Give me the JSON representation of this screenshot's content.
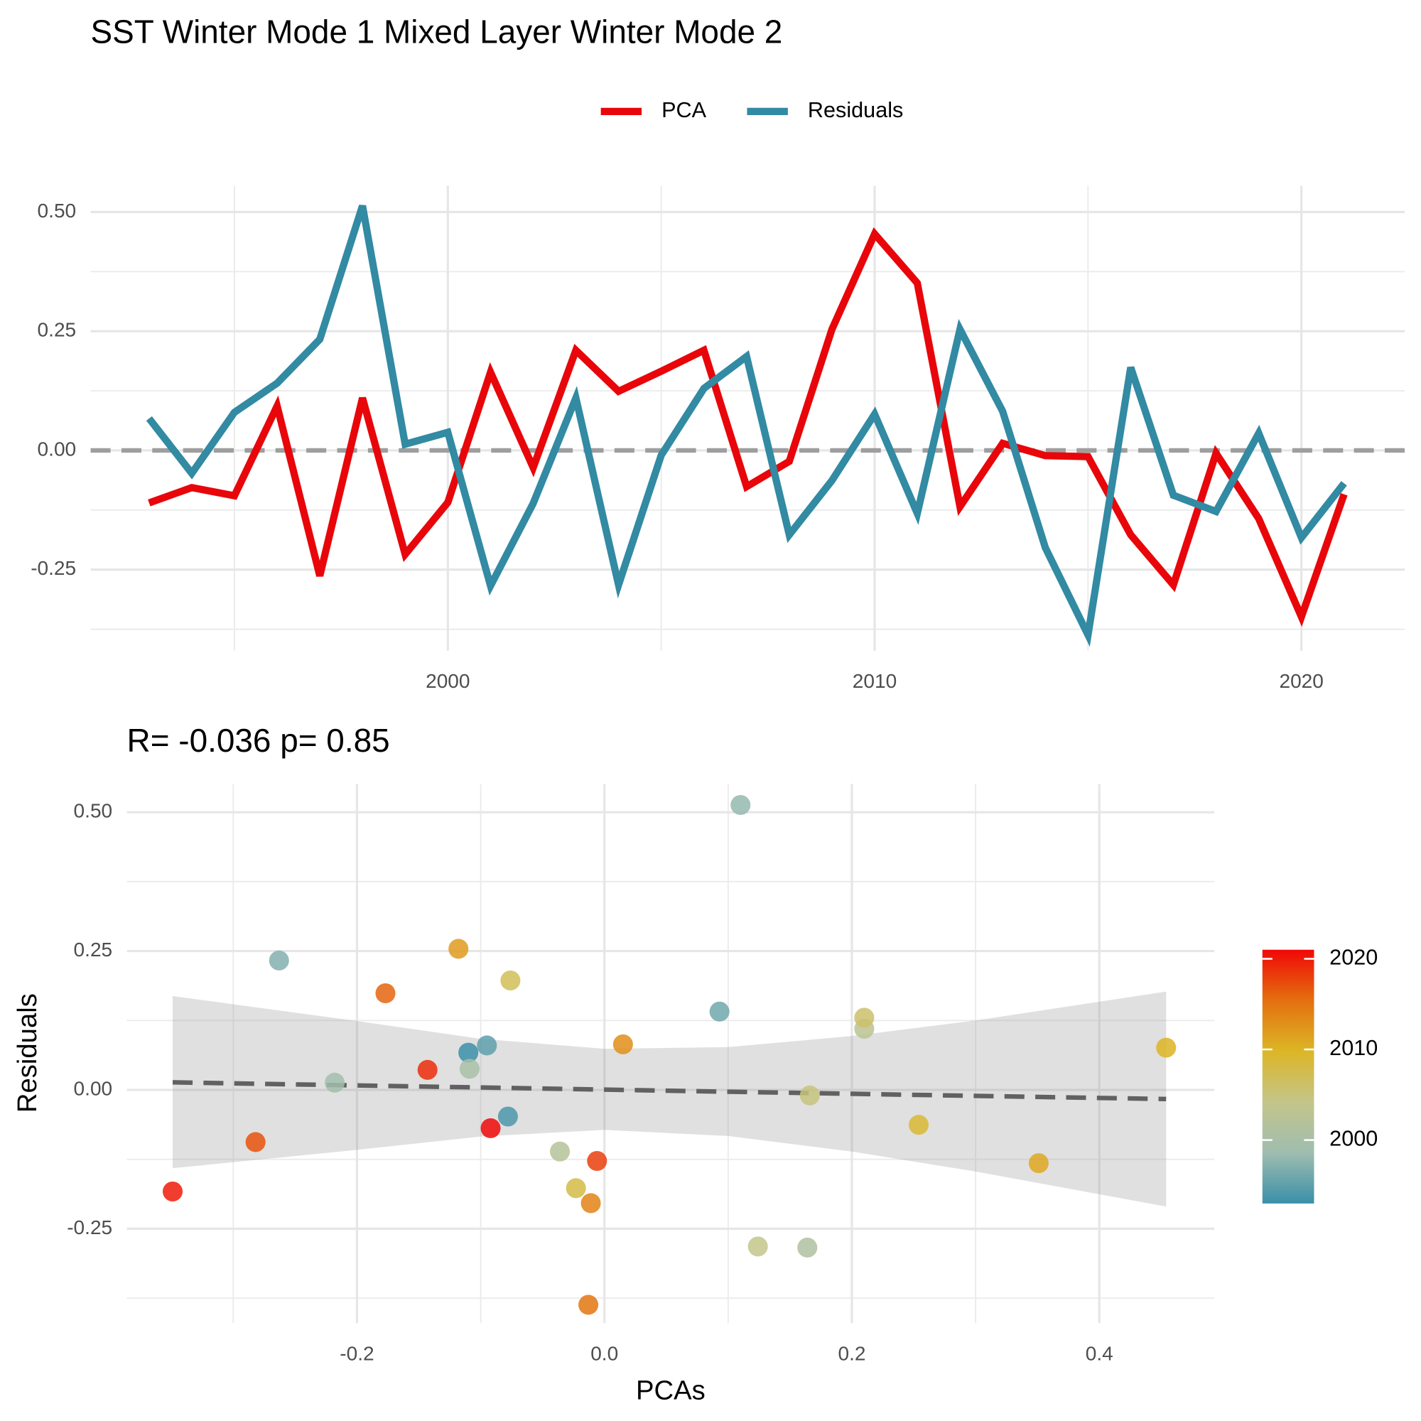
{
  "chart_data": [
    {
      "type": "line",
      "title": "SST Winter Mode 1 Mixed Layer Winter Mode 2",
      "x": [
        1993,
        1994,
        1995,
        1996,
        1997,
        1998,
        1999,
        2000,
        2001,
        2002,
        2003,
        2004,
        2005,
        2006,
        2007,
        2008,
        2009,
        2010,
        2011,
        2012,
        2013,
        2014,
        2015,
        2016,
        2017,
        2018,
        2019,
        2020,
        2021
      ],
      "series": [
        {
          "name": "PCA",
          "color": "#e8060a",
          "values": [
            -0.11,
            -0.078,
            -0.095,
            0.093,
            -0.263,
            0.11,
            -0.218,
            -0.109,
            0.164,
            -0.036,
            0.21,
            0.124,
            0.166,
            0.21,
            -0.076,
            -0.023,
            0.254,
            0.454,
            0.351,
            -0.118,
            0.015,
            -0.011,
            -0.013,
            -0.177,
            -0.282,
            -0.006,
            -0.143,
            -0.349,
            -0.092
          ]
        },
        {
          "name": "Residuals",
          "color": "#328aa3",
          "values": [
            0.067,
            -0.048,
            0.08,
            0.141,
            0.233,
            0.513,
            0.013,
            0.038,
            -0.284,
            -0.111,
            0.11,
            -0.282,
            -0.01,
            0.13,
            0.197,
            -0.177,
            -0.063,
            0.076,
            -0.132,
            0.254,
            0.082,
            -0.204,
            -0.387,
            0.174,
            -0.094,
            -0.128,
            0.036,
            -0.183,
            -0.069
          ]
        }
      ],
      "xlim": [
        1991.63,
        2022.42
      ],
      "xticks": [
        2000,
        2010,
        2020
      ],
      "xminor": [
        1995,
        2005,
        2015
      ],
      "ylim": [
        -0.42,
        0.555
      ],
      "yticks": [
        {
          "value": -0.25,
          "label": "-0.25"
        },
        {
          "value": 0,
          "label": "0.00"
        },
        0.25,
        {
          "value": 0.5,
          "label": "0.50"
        }
      ],
      "yminor": [
        -0.375,
        -0.125,
        0.125,
        0.375
      ],
      "hline": 0,
      "grid": true,
      "legend": "top"
    },
    {
      "type": "scatter",
      "title": "R= -0.036  p= 0.85",
      "xlabel": "PCAs",
      "ylabel": "Residuals",
      "x": [
        -0.11,
        -0.078,
        -0.095,
        0.093,
        -0.263,
        0.11,
        -0.218,
        -0.109,
        0.164,
        -0.036,
        0.21,
        0.124,
        0.166,
        0.21,
        -0.076,
        -0.023,
        0.254,
        0.454,
        0.351,
        -0.118,
        0.015,
        -0.011,
        -0.013,
        -0.177,
        -0.282,
        -0.006,
        -0.143,
        -0.349,
        -0.092
      ],
      "y": [
        0.067,
        -0.048,
        0.08,
        0.141,
        0.233,
        0.513,
        0.013,
        0.038,
        -0.284,
        -0.111,
        0.11,
        -0.282,
        -0.01,
        0.13,
        0.197,
        -0.177,
        -0.063,
        0.076,
        -0.132,
        0.254,
        0.082,
        -0.204,
        -0.387,
        0.174,
        -0.094,
        -0.128,
        0.036,
        -0.183,
        -0.069
      ],
      "years": [
        1993,
        1994,
        1995,
        1996,
        1997,
        1998,
        1999,
        2000,
        2001,
        2002,
        2003,
        2004,
        2005,
        2006,
        2007,
        2008,
        2009,
        2010,
        2011,
        2012,
        2013,
        2014,
        2015,
        2016,
        2017,
        2018,
        2019,
        2020,
        2021
      ],
      "fit": {
        "x": [
          -0.349,
          -0.2,
          -0.1,
          0,
          0.1,
          0.2,
          0.3,
          0.454
        ],
        "y": [
          0.0136,
          0.008,
          0.0043,
          0.0005,
          -0.0033,
          -0.007,
          -0.0108,
          -0.0165
        ],
        "lower": [
          -0.141,
          -0.108,
          -0.084,
          -0.072,
          -0.083,
          -0.111,
          -0.147,
          -0.21
        ],
        "upper": [
          0.169,
          0.124,
          0.092,
          0.074,
          0.077,
          0.097,
          0.125,
          0.177
        ]
      },
      "xlim": [
        -0.386,
        0.493
      ],
      "xticks": [
        -0.2,
        {
          "value": 0,
          "label": "0.0"
        },
        0.2,
        0.4
      ],
      "xminor": [
        -0.3,
        -0.1,
        0.1,
        0.3
      ],
      "ylim": [
        -0.42,
        0.551
      ],
      "yticks": [
        {
          "value": -0.25,
          "label": "-0.25"
        },
        {
          "value": 0,
          "label": "0.00"
        },
        0.25,
        {
          "value": 0.5,
          "label": "0.50"
        }
      ],
      "yminor": [
        -0.375,
        -0.125,
        0.125,
        0.375
      ],
      "grid": true,
      "colorbar": {
        "lim": [
          1993,
          2021
        ],
        "ticks": [
          2000,
          2010,
          2020
        ],
        "colors": [
          "#3a8fa8",
          "#9fbdb0",
          "#c4c58a",
          "#dcb626",
          "#e4700f",
          "#f00808"
        ]
      }
    }
  ]
}
